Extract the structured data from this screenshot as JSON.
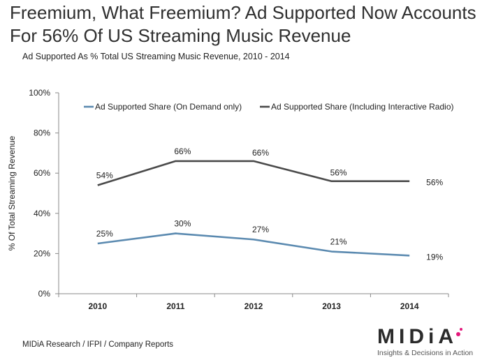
{
  "title": "Freemium, What Freemium? Ad Supported Now Accounts For 56% Of US Streaming Music Revenue",
  "subtitle": "Ad Supported As % Total US Streaming Music Revenue, 2010 - 2014",
  "source": "MIDiA Research / IFPI / Company Reports",
  "logo": {
    "word": "MIDiA",
    "tagline": "Insights & Decisions in Action"
  },
  "chart_data": {
    "type": "line",
    "x": [
      "2010",
      "2011",
      "2012",
      "2013",
      "2014"
    ],
    "ylabel": "% Of Total Streaming Revenue",
    "ylim": [
      0,
      100
    ],
    "yticks": [
      "0%",
      "20%",
      "40%",
      "60%",
      "80%",
      "100%"
    ],
    "grid": false,
    "legend": "top",
    "series": [
      {
        "name": "Ad Supported Share (On Demand only)",
        "values": [
          25,
          30,
          27,
          21,
          19
        ],
        "labels": [
          "25%",
          "30%",
          "27%",
          "21%",
          "19%"
        ],
        "color": "#5b8ab0"
      },
      {
        "name": "Ad Supported Share (Including Interactive Radio)",
        "values": [
          54,
          66,
          66,
          56,
          56
        ],
        "labels": [
          "54%",
          "66%",
          "66%",
          "56%",
          "56%"
        ],
        "color": "#4a4a4a"
      }
    ]
  }
}
